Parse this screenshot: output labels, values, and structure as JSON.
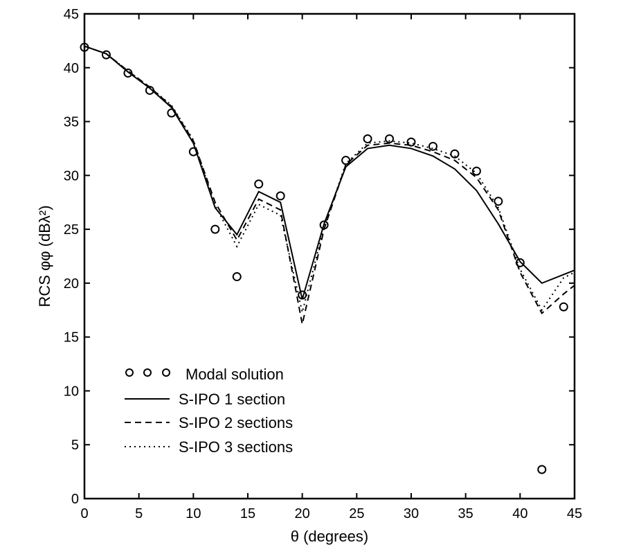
{
  "chart_data": {
    "type": "line",
    "title": "",
    "xlabel": "θ (degrees)",
    "ylabel": "RCS φφ (dBλ²)",
    "xlim": [
      0,
      45
    ],
    "ylim": [
      0,
      45
    ],
    "xticks": [
      0,
      5,
      10,
      15,
      20,
      25,
      30,
      35,
      40,
      45
    ],
    "yticks": [
      0,
      5,
      10,
      15,
      20,
      25,
      30,
      35,
      40,
      45
    ],
    "grid": false,
    "legend_position": "bottom-left",
    "series": [
      {
        "name": "Modal solution",
        "style": "circles",
        "x": [
          0,
          2,
          4,
          6,
          8,
          10,
          12,
          14,
          16,
          18,
          20,
          22,
          24,
          26,
          28,
          30,
          32,
          34,
          36,
          38,
          40,
          42,
          44
        ],
        "y": [
          41.9,
          41.2,
          39.5,
          37.9,
          35.8,
          32.2,
          25.0,
          20.6,
          29.2,
          28.1,
          18.9,
          25.4,
          31.4,
          33.4,
          33.4,
          33.1,
          32.7,
          32.0,
          30.4,
          27.6,
          21.9,
          2.7,
          17.8
        ]
      },
      {
        "name": "S-IPO 1 section",
        "style": "solid",
        "x": [
          0,
          2,
          4,
          6,
          8,
          10,
          12,
          14,
          16,
          18,
          20,
          22,
          24,
          26,
          28,
          30,
          32,
          34,
          36,
          38,
          40,
          42,
          44,
          45
        ],
        "y": [
          42.0,
          41.3,
          39.6,
          38.1,
          36.3,
          33.0,
          27.0,
          24.5,
          28.5,
          27.5,
          18.5,
          25.5,
          30.8,
          32.5,
          32.8,
          32.5,
          31.8,
          30.6,
          28.6,
          25.5,
          22.0,
          20.0,
          20.8,
          21.2
        ]
      },
      {
        "name": "S-IPO 2 sections",
        "style": "dashed",
        "x": [
          0,
          2,
          4,
          6,
          8,
          10,
          12,
          14,
          16,
          18,
          20,
          22,
          24,
          26,
          28,
          30,
          32,
          34,
          36,
          38,
          40,
          42,
          44,
          45
        ],
        "y": [
          42.0,
          41.3,
          39.7,
          38.2,
          36.4,
          33.2,
          27.5,
          24.0,
          27.8,
          26.8,
          16.2,
          25.0,
          31.0,
          32.8,
          33.0,
          32.8,
          32.2,
          31.4,
          29.8,
          26.8,
          21.0,
          17.2,
          19.0,
          19.8
        ]
      },
      {
        "name": "S-IPO 3 sections",
        "style": "dotted",
        "x": [
          0,
          2,
          4,
          6,
          8,
          10,
          12,
          14,
          16,
          18,
          20,
          22,
          24,
          26,
          28,
          30,
          32,
          34,
          36,
          38,
          40,
          42,
          44,
          45
        ],
        "y": [
          42.0,
          41.3,
          39.7,
          38.2,
          36.5,
          33.3,
          27.2,
          23.4,
          27.3,
          26.3,
          17.3,
          25.2,
          31.1,
          33.0,
          33.2,
          33.0,
          32.5,
          31.8,
          30.2,
          27.0,
          21.3,
          17.5,
          20.5,
          21.0
        ]
      }
    ]
  }
}
